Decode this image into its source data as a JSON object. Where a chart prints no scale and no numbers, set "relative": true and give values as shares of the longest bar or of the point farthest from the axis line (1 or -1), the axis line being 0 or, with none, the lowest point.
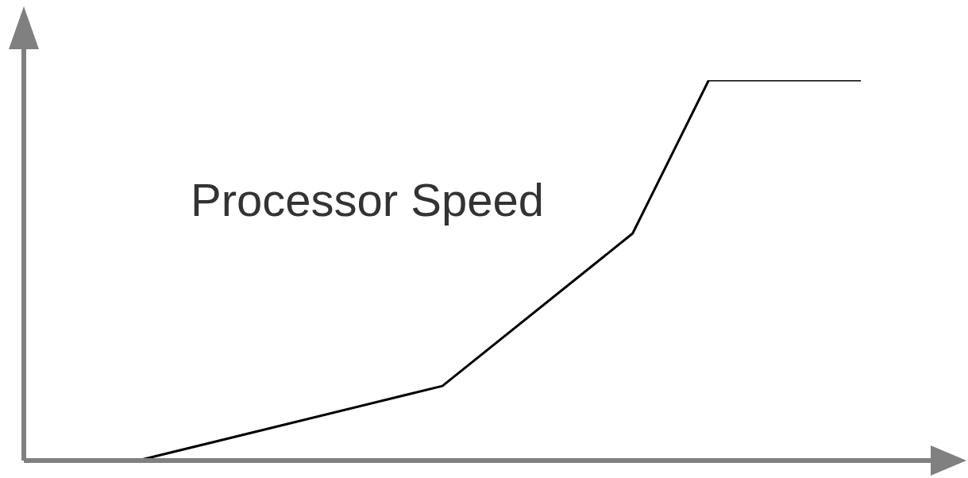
{
  "chart_data": {
    "type": "line",
    "relative": true,
    "categories": [
      null,
      null,
      null,
      null,
      null,
      null,
      null,
      null,
      null,
      null,
      null,
      null,
      null,
      null,
      null,
      null,
      null,
      null,
      null,
      null,
      null,
      null,
      null,
      null,
      null
    ],
    "series": [
      {
        "name": "Processor Speed",
        "color": "#000000",
        "values": [
          null,
          null,
          null,
          0,
          null,
          null,
          null,
          null,
          null,
          null,
          null,
          0.196,
          null,
          null,
          null,
          null,
          0.597,
          null,
          1,
          null,
          null,
          null,
          1,
          null,
          null
        ]
      }
    ],
    "marker": "none",
    "line_style": "solid",
    "grid": false,
    "legend": false
  }
}
